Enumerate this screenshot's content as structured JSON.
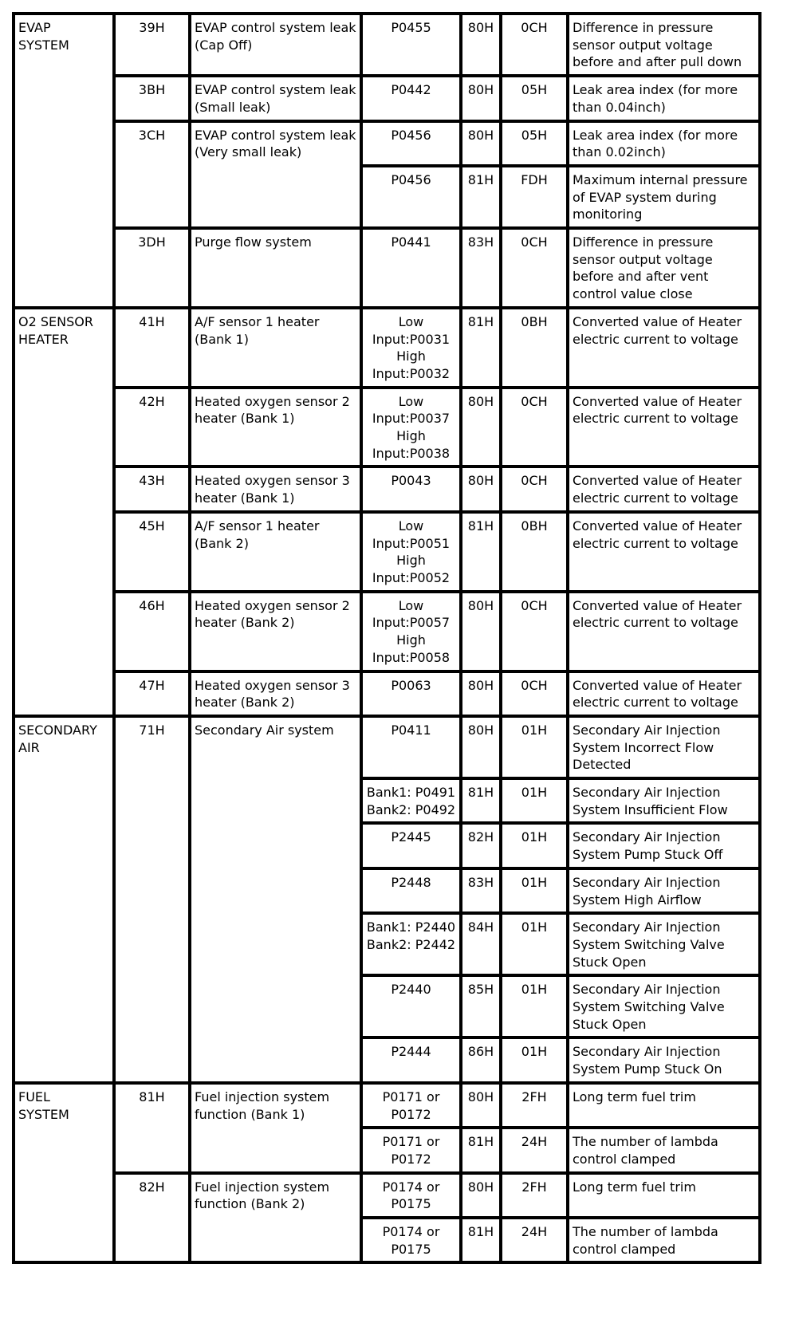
{
  "table": {
    "groups": [
      {
        "system": "EVAP\nSYSTEM",
        "tests": [
          {
            "tid": "39H",
            "name": "EVAP control system leak (Cap Off)",
            "rows": [
              {
                "dtc": "P0455",
                "cid": "80H",
                "unit": "0CH",
                "desc": "Difference in pressure sensor output voltage before and after pull down"
              }
            ]
          },
          {
            "tid": "3BH",
            "name": "EVAP control system leak (Small leak)",
            "rows": [
              {
                "dtc": "P0442",
                "cid": "80H",
                "unit": "05H",
                "desc": "Leak area index (for more than 0.04inch)"
              }
            ]
          },
          {
            "tid": "3CH",
            "name": "EVAP control system leak\n(Very small leak)",
            "rows": [
              {
                "dtc": "P0456",
                "cid": "80H",
                "unit": "05H",
                "desc": "Leak area index (for more than 0.02inch)"
              },
              {
                "dtc": "P0456",
                "cid": "81H",
                "unit": "FDH",
                "desc": "Maximum internal pressure of EVAP system during monitoring"
              }
            ]
          },
          {
            "tid": "3DH",
            "name": "Purge flow system",
            "rows": [
              {
                "dtc": "P0441",
                "cid": "83H",
                "unit": "0CH",
                "desc": "Difference in pressure sensor output voltage before and after vent control value close"
              }
            ]
          }
        ]
      },
      {
        "system": "O2 SENSOR HEATER",
        "tests": [
          {
            "tid": "41H",
            "name": "A/F sensor 1 heater (Bank 1)",
            "rows": [
              {
                "dtc": "Low Input:P0031 High Input:P0032",
                "cid": "81H",
                "unit": "0BH",
                "desc": "Converted value of Heater electric current to voltage"
              }
            ]
          },
          {
            "tid": "42H",
            "name": "Heated oxygen sensor 2 heater (Bank 1)",
            "rows": [
              {
                "dtc": "Low Input:P0037 High Input:P0038",
                "cid": "80H",
                "unit": "0CH",
                "desc": "Converted value of Heater electric current to voltage"
              }
            ]
          },
          {
            "tid": "43H",
            "name": "Heated oxygen sensor 3 heater (Bank 1)",
            "rows": [
              {
                "dtc": "P0043",
                "cid": "80H",
                "unit": "0CH",
                "desc": "Converted value of Heater electric current to voltage"
              }
            ]
          },
          {
            "tid": "45H",
            "name": "A/F sensor 1 heater (Bank 2)",
            "rows": [
              {
                "dtc": "Low Input:P0051 High Input:P0052",
                "cid": "81H",
                "unit": "0BH",
                "desc": "Converted value of Heater electric current to voltage"
              }
            ]
          },
          {
            "tid": "46H",
            "name": "Heated oxygen sensor 2 heater (Bank 2)",
            "rows": [
              {
                "dtc": "Low Input:P0057 High Input:P0058",
                "cid": "80H",
                "unit": "0CH",
                "desc": "Converted value of Heater electric current to voltage"
              }
            ]
          },
          {
            "tid": "47H",
            "name": "Heated oxygen sensor 3 heater (Bank 2)",
            "rows": [
              {
                "dtc": "P0063",
                "cid": "80H",
                "unit": "0CH",
                "desc": "Converted value of Heater electric current to voltage"
              }
            ]
          }
        ]
      },
      {
        "system": "SECONDARY AIR",
        "tests": [
          {
            "tid": "71H",
            "name": "Secondary Air system",
            "rows": [
              {
                "dtc": "P0411",
                "cid": "80H",
                "unit": "01H",
                "desc": "Secondary Air Injection System Incorrect Flow Detected"
              },
              {
                "dtc": "Bank1: P0491 Bank2: P0492",
                "cid": "81H",
                "unit": "01H",
                "desc": "Secondary Air Injection System Insufficient Flow"
              },
              {
                "dtc": "P2445",
                "cid": "82H",
                "unit": "01H",
                "desc": "Secondary Air Injection System Pump Stuck Off"
              },
              {
                "dtc": "P2448",
                "cid": "83H",
                "unit": "01H",
                "desc": "Secondary Air Injection System High Airflow"
              },
              {
                "dtc": "Bank1: P2440 Bank2: P2442",
                "cid": "84H",
                "unit": "01H",
                "desc": "Secondary Air Injection System Switching Valve Stuck Open"
              },
              {
                "dtc": "P2440",
                "cid": "85H",
                "unit": "01H",
                "desc": "Secondary Air Injection System Switching Valve Stuck Open"
              },
              {
                "dtc": "P2444",
                "cid": "86H",
                "unit": "01H",
                "desc": "Secondary Air Injection System Pump Stuck On"
              }
            ]
          }
        ]
      },
      {
        "system": "FUEL\nSYSTEM",
        "tests": [
          {
            "tid": "81H",
            "name": "Fuel injection system function (Bank 1)",
            "rows": [
              {
                "dtc": "P0171 or P0172",
                "cid": "80H",
                "unit": "2FH",
                "desc": "Long term fuel trim"
              },
              {
                "dtc": "P0171 or P0172",
                "cid": "81H",
                "unit": "24H",
                "desc": "The number of lambda control clamped"
              }
            ]
          },
          {
            "tid": "82H",
            "name": "Fuel injection system function (Bank 2)",
            "rows": [
              {
                "dtc": "P0174 or P0175",
                "cid": "80H",
                "unit": "2FH",
                "desc": "Long term fuel trim"
              },
              {
                "dtc": "P0174 or P0175",
                "cid": "81H",
                "unit": "24H",
                "desc": "The number of lambda control clamped"
              }
            ]
          }
        ]
      }
    ]
  }
}
